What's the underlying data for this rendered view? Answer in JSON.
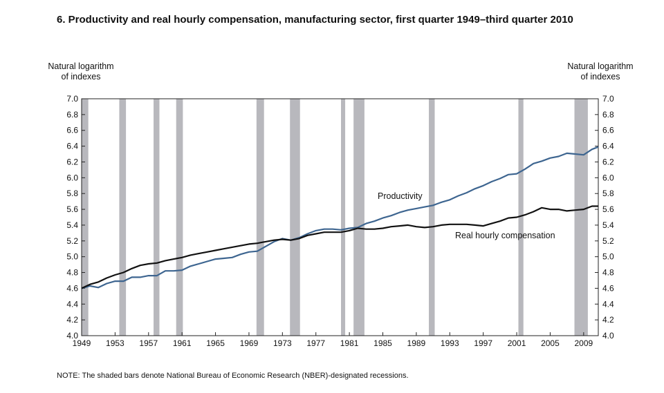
{
  "title": "6. Productivity and real hourly compensation, manufacturing sector, first quarter 1949–third quarter 2010",
  "left_axis_title": [
    "Natural logarithm",
    "of indexes"
  ],
  "right_axis_title": [
    "Natural logarithm",
    "of indexes"
  ],
  "note": "NOTE:  The shaded bars denote National Bureau of Economic Research (NBER)-designated recessions.",
  "colors": {
    "productivity": "#3d6590",
    "compensation": "#111111",
    "recession": "#b8b8bd"
  },
  "chart_data": {
    "type": "line",
    "xlim": [
      1949,
      2010.75
    ],
    "ylim": [
      4.0,
      7.0
    ],
    "x_ticks": [
      1949,
      1953,
      1957,
      1961,
      1965,
      1969,
      1973,
      1977,
      1981,
      1985,
      1989,
      1993,
      1997,
      2001,
      2005,
      2009
    ],
    "y_ticks": [
      "4.0",
      "4.2",
      "4.4",
      "4.6",
      "4.8",
      "5.0",
      "5.2",
      "5.4",
      "5.6",
      "5.8",
      "6.0",
      "6.2",
      "6.4",
      "6.6",
      "6.8",
      "7.0"
    ],
    "recessions": [
      [
        1949.0,
        1949.8
      ],
      [
        1953.5,
        1954.3
      ],
      [
        1957.6,
        1958.3
      ],
      [
        1960.3,
        1961.1
      ],
      [
        1969.9,
        1970.8
      ],
      [
        1973.9,
        1975.1
      ],
      [
        1980.0,
        1980.5
      ],
      [
        1981.5,
        1982.8
      ],
      [
        1990.5,
        1991.2
      ],
      [
        2001.2,
        2001.8
      ],
      [
        2007.9,
        2009.5
      ]
    ],
    "series": [
      {
        "name": "Productivity",
        "x": [
          1949,
          1950,
          1951,
          1952,
          1953,
          1954,
          1955,
          1956,
          1957,
          1958,
          1959,
          1960,
          1961,
          1962,
          1963,
          1964,
          1965,
          1966,
          1967,
          1968,
          1969,
          1970,
          1971,
          1972,
          1973,
          1974,
          1975,
          1976,
          1977,
          1978,
          1979,
          1980,
          1981,
          1982,
          1983,
          1984,
          1985,
          1986,
          1987,
          1988,
          1989,
          1990,
          1991,
          1992,
          1993,
          1994,
          1995,
          1996,
          1997,
          1998,
          1999,
          2000,
          2001,
          2002,
          2003,
          2004,
          2005,
          2006,
          2007,
          2008,
          2009,
          2010,
          2010.75
        ],
        "values": [
          4.6,
          4.63,
          4.61,
          4.66,
          4.69,
          4.69,
          4.74,
          4.74,
          4.76,
          4.76,
          4.82,
          4.82,
          4.83,
          4.88,
          4.91,
          4.94,
          4.97,
          4.98,
          4.99,
          5.03,
          5.06,
          5.07,
          5.13,
          5.19,
          5.23,
          5.21,
          5.24,
          5.29,
          5.33,
          5.35,
          5.35,
          5.34,
          5.36,
          5.37,
          5.42,
          5.45,
          5.49,
          5.52,
          5.56,
          5.59,
          5.61,
          5.63,
          5.65,
          5.69,
          5.72,
          5.77,
          5.81,
          5.86,
          5.9,
          5.95,
          5.99,
          6.04,
          6.05,
          6.11,
          6.18,
          6.21,
          6.25,
          6.27,
          6.31,
          6.3,
          6.29,
          6.36,
          6.39
        ]
      },
      {
        "name": "Real hourly compensation",
        "x": [
          1949,
          1950,
          1951,
          1952,
          1953,
          1954,
          1955,
          1956,
          1957,
          1958,
          1959,
          1960,
          1961,
          1962,
          1963,
          1964,
          1965,
          1966,
          1967,
          1968,
          1969,
          1970,
          1971,
          1972,
          1973,
          1974,
          1975,
          1976,
          1977,
          1978,
          1979,
          1980,
          1981,
          1982,
          1983,
          1984,
          1985,
          1986,
          1987,
          1988,
          1989,
          1990,
          1991,
          1992,
          1993,
          1994,
          1995,
          1996,
          1997,
          1998,
          1999,
          2000,
          2001,
          2002,
          2003,
          2004,
          2005,
          2006,
          2007,
          2008,
          2009,
          2010,
          2010.75
        ],
        "values": [
          4.6,
          4.65,
          4.68,
          4.73,
          4.77,
          4.8,
          4.85,
          4.89,
          4.91,
          4.92,
          4.95,
          4.97,
          4.99,
          5.02,
          5.04,
          5.06,
          5.08,
          5.1,
          5.12,
          5.14,
          5.16,
          5.17,
          5.19,
          5.21,
          5.22,
          5.21,
          5.23,
          5.27,
          5.29,
          5.31,
          5.31,
          5.31,
          5.33,
          5.36,
          5.35,
          5.35,
          5.36,
          5.38,
          5.39,
          5.4,
          5.38,
          5.37,
          5.38,
          5.4,
          5.41,
          5.41,
          5.41,
          5.4,
          5.39,
          5.42,
          5.45,
          5.49,
          5.5,
          5.53,
          5.57,
          5.62,
          5.6,
          5.6,
          5.58,
          5.59,
          5.6,
          5.64,
          5.64
        ]
      }
    ]
  }
}
